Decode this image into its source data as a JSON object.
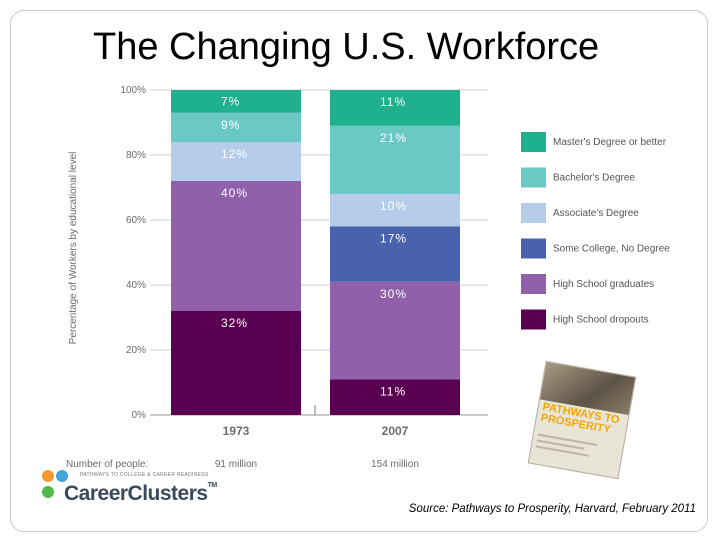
{
  "slide": {
    "title": "The Changing U.S. Workforce",
    "source": "Source: Pathways to Prosperity, Harvard, February 2011"
  },
  "chart_data": {
    "type": "bar",
    "stacked": true,
    "title": "The Changing U.S. Workforce",
    "xlabel": "",
    "ylabel": "Percentage of Workers by educational level",
    "ylim": [
      0,
      100
    ],
    "yticks": [
      "0%",
      "20%",
      "40%",
      "60%",
      "80%",
      "100%"
    ],
    "categories": [
      "1973",
      "2007"
    ],
    "series": [
      {
        "name": "High School dropouts",
        "color": "#5a0050",
        "values": [
          32,
          11
        ],
        "labels": [
          "32%",
          "11%"
        ]
      },
      {
        "name": "High School graduates",
        "color": "#9160ab",
        "values": [
          40,
          30
        ],
        "labels": [
          "40%",
          "30%"
        ]
      },
      {
        "name": "Some College, No Degree",
        "color": "#4862ae",
        "values": [
          0,
          17
        ],
        "labels": [
          "",
          "17%"
        ]
      },
      {
        "name": "Associate's Degree",
        "color": "#b5cdea",
        "values": [
          12,
          10
        ],
        "labels": [
          "12%",
          "10%"
        ]
      },
      {
        "name": "Bachelor's Degree",
        "color": "#6ac8c5",
        "values": [
          9,
          21
        ],
        "labels": [
          "9%",
          "21%"
        ]
      },
      {
        "name": "Master's Degree or better",
        "color": "#1fb08e",
        "values": [
          7,
          11
        ],
        "labels": [
          "7%",
          "11%"
        ]
      }
    ],
    "legend_order": [
      "Master's Degree or better",
      "Bachelor's Degree",
      "Associate's Degree",
      "Some College, No Degree",
      "High School graduates",
      "High School dropouts"
    ],
    "legend_position": "right",
    "people_label": "Number of people:",
    "people_counts": [
      "91 million",
      "154 million"
    ]
  },
  "book": {
    "title_line1": "PATHWAYS TO",
    "title_line2": "PROSPERITY"
  },
  "logo": {
    "tagline": "PATHWAYS TO COLLEGE & CAREER READINESS",
    "wordmark": "CareerClusters",
    "tm": "TM",
    "colors": [
      "#f29a2e",
      "#4fb848",
      "#41a6d9"
    ]
  }
}
